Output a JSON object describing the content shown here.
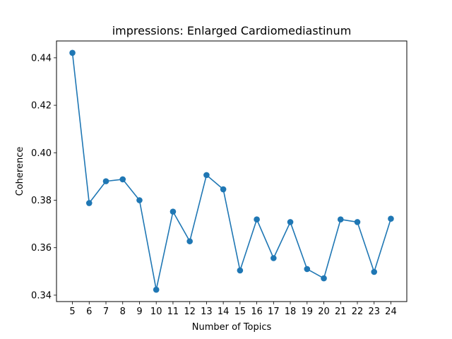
{
  "chart_data": {
    "type": "line",
    "title": "impressions: Enlarged Cardiomediastinum",
    "xlabel": "Number of Topics",
    "ylabel": "Coherence",
    "x": [
      5,
      6,
      7,
      8,
      9,
      10,
      11,
      12,
      13,
      14,
      15,
      16,
      17,
      18,
      19,
      20,
      21,
      22,
      23,
      24
    ],
    "series": [
      {
        "values": [
          0.4421,
          0.3788,
          0.388,
          0.3888,
          0.38,
          0.3423,
          0.3752,
          0.3627,
          0.3906,
          0.3846,
          0.3504,
          0.3719,
          0.3556,
          0.3708,
          0.351,
          0.3471,
          0.3719,
          0.3708,
          0.3498,
          0.3722
        ],
        "color": "#1f77b4",
        "marker": "circle"
      }
    ],
    "xticks": [
      "5",
      "6",
      "7",
      "8",
      "9",
      "10",
      "11",
      "12",
      "13",
      "14",
      "15",
      "16",
      "17",
      "18",
      "19",
      "20",
      "21",
      "22",
      "23",
      "24"
    ],
    "yticks": [
      0.34,
      0.36,
      0.38,
      0.4,
      0.42,
      0.44
    ],
    "ytick_labels": [
      "0.34",
      "0.36",
      "0.38",
      "0.40",
      "0.42",
      "0.44"
    ],
    "xlim": [
      4.05,
      24.95
    ],
    "ylim": [
      0.3373,
      0.4471
    ],
    "grid": false,
    "legend": "none"
  }
}
